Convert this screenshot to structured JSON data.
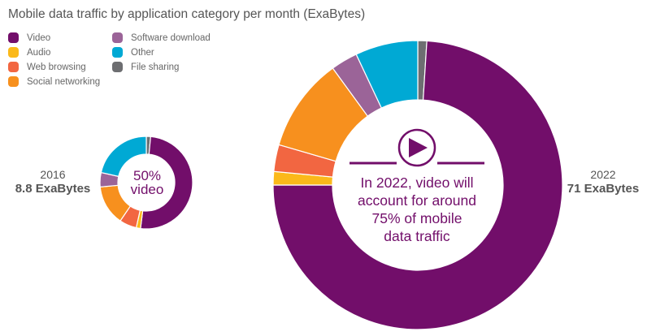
{
  "chart_data": {
    "type": "pie",
    "title": "Mobile data traffic by application category per month (ExaBytes)",
    "legend": {
      "placement": "top-left",
      "entries": [
        {
          "name": "Video",
          "color": "#720e6a"
        },
        {
          "name": "Audio",
          "color": "#fbb91a"
        },
        {
          "name": "Web browsing",
          "color": "#f26641"
        },
        {
          "name": "Social networking",
          "color": "#f7901e"
        },
        {
          "name": "Software download",
          "color": "#9b6498"
        },
        {
          "name": "Other",
          "color": "#00a9d4"
        },
        {
          "name": "File sharing",
          "color": "#6d6e71"
        }
      ]
    },
    "charts": [
      {
        "year": "2016",
        "total": "8.8 ExaBytes",
        "center_text": [
          "50%",
          "video"
        ],
        "categories": [
          "Video",
          "Audio",
          "Web browsing",
          "Social networking",
          "Software download",
          "Other",
          "File sharing"
        ],
        "values": [
          50.5,
          1.5,
          6,
          14,
          5,
          21.5,
          1.5
        ]
      },
      {
        "year": "2022",
        "total": "71 ExaBytes",
        "center_text": [
          "In 2022, video will",
          "account for around",
          "75% of mobile",
          "data traffic"
        ],
        "center_icon": "play-icon",
        "categories": [
          "Video",
          "Audio",
          "Web browsing",
          "Social networking",
          "Software download",
          "Other",
          "File sharing"
        ],
        "values": [
          74,
          1.5,
          3,
          10.5,
          3,
          7,
          1
        ]
      }
    ]
  }
}
